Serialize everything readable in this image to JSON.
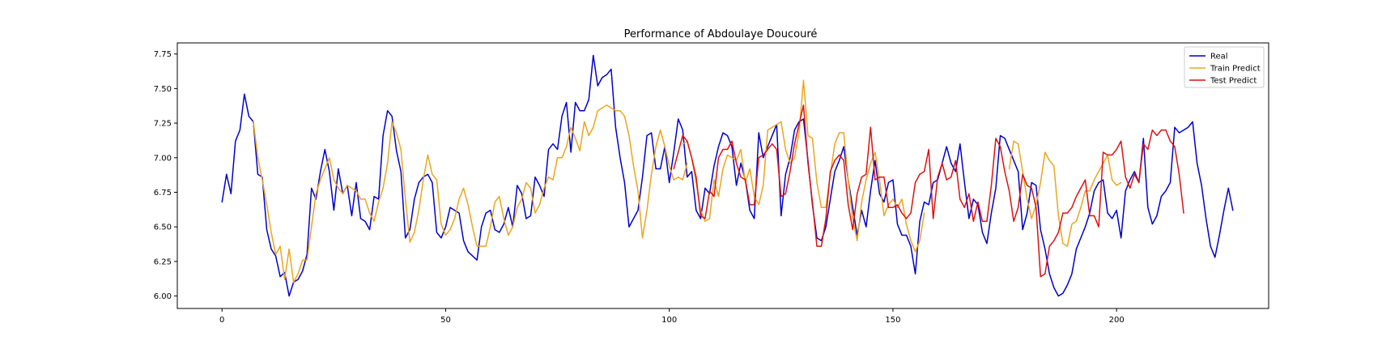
{
  "chart_data": {
    "type": "line",
    "title": "Performance of Abdoulaye Doucouré",
    "xlabel": "",
    "ylabel": "",
    "xlim": [
      -10,
      234
    ],
    "ylim": [
      5.91,
      7.83
    ],
    "xticks": [
      0,
      50,
      100,
      150,
      200
    ],
    "yticks": [
      6.0,
      6.25,
      6.5,
      6.75,
      7.0,
      7.25,
      7.5,
      7.75
    ],
    "ytick_labels": [
      "6.00",
      "6.25",
      "6.50",
      "6.75",
      "7.00",
      "7.25",
      "7.50",
      "7.75"
    ],
    "legend_position": "top-right",
    "grid": false,
    "series": [
      {
        "name": "Real",
        "color": "#0000cc",
        "x_start": 0,
        "values": [
          6.68,
          6.88,
          6.74,
          7.12,
          7.2,
          7.46,
          7.3,
          7.26,
          6.88,
          6.86,
          6.48,
          6.34,
          6.29,
          6.14,
          6.17,
          6.0,
          6.1,
          6.12,
          6.18,
          6.3,
          6.78,
          6.7,
          6.9,
          7.06,
          6.9,
          6.62,
          6.92,
          6.74,
          6.8,
          6.58,
          6.82,
          6.56,
          6.54,
          6.48,
          6.72,
          6.7,
          7.16,
          7.34,
          7.3,
          7.05,
          6.9,
          6.42,
          6.48,
          6.7,
          6.82,
          6.86,
          6.88,
          6.82,
          6.46,
          6.42,
          6.5,
          6.64,
          6.62,
          6.6,
          6.4,
          6.32,
          6.29,
          6.26,
          6.5,
          6.6,
          6.62,
          6.48,
          6.46,
          6.52,
          6.64,
          6.5,
          6.8,
          6.74,
          6.56,
          6.58,
          6.86,
          6.8,
          6.72,
          7.06,
          7.1,
          7.06,
          7.3,
          7.4,
          7.04,
          7.4,
          7.34,
          7.34,
          7.42,
          7.74,
          7.52,
          7.58,
          7.6,
          7.64,
          7.22,
          7.0,
          6.82,
          6.5,
          6.56,
          6.62,
          6.86,
          7.16,
          7.18,
          6.92,
          6.92,
          7.08,
          6.82,
          7.04,
          7.28,
          7.2,
          6.86,
          6.9,
          6.62,
          6.56,
          6.78,
          6.74,
          6.94,
          7.08,
          7.18,
          7.16,
          7.08,
          6.8,
          6.96,
          6.84,
          6.62,
          6.56,
          7.18,
          7.0,
          7.08,
          7.16,
          7.24,
          6.58,
          6.88,
          7.0,
          7.2,
          7.26,
          7.28,
          6.98,
          6.66,
          6.42,
          6.4,
          6.5,
          6.7,
          6.9,
          6.98,
          7.08,
          6.84,
          6.64,
          6.44,
          6.62,
          6.5,
          6.76,
          6.98,
          6.74,
          6.68,
          6.82,
          6.84,
          6.52,
          6.44,
          6.44,
          6.36,
          6.16,
          6.54,
          6.68,
          6.66,
          6.82,
          6.84,
          6.96,
          7.08,
          6.96,
          6.9,
          7.1,
          6.82,
          6.56,
          6.7,
          6.66,
          6.46,
          6.38,
          6.6,
          6.78,
          7.16,
          7.14,
          7.06,
          6.98,
          6.9,
          6.48,
          6.6,
          6.82,
          6.8,
          6.48,
          6.34,
          6.16,
          6.06,
          6.0,
          6.02,
          6.08,
          6.16,
          6.34,
          6.42,
          6.5,
          6.6,
          6.76,
          6.82,
          6.84,
          6.6,
          6.56,
          6.62,
          6.42,
          6.76,
          6.84,
          6.9,
          6.82,
          7.14,
          6.64,
          6.52,
          6.58,
          6.72,
          6.76,
          6.82,
          7.22,
          7.18,
          7.2,
          7.22,
          7.26,
          6.96,
          6.8,
          6.56,
          6.36,
          6.28,
          6.44,
          6.62,
          6.78,
          6.62
        ]
      },
      {
        "name": "Train Predict",
        "color": "#eba51e",
        "x_start": 7,
        "values": [
          7.26,
          7.0,
          6.84,
          6.66,
          6.46,
          6.3,
          6.36,
          6.12,
          6.34,
          6.1,
          6.16,
          6.26,
          6.26,
          6.5,
          6.74,
          6.84,
          6.92,
          7.0,
          6.84,
          6.78,
          6.74,
          6.8,
          6.78,
          6.76,
          6.7,
          6.7,
          6.6,
          6.54,
          6.68,
          6.78,
          6.96,
          7.26,
          7.18,
          7.06,
          6.7,
          6.39,
          6.46,
          6.62,
          6.84,
          7.02,
          6.88,
          6.84,
          6.52,
          6.44,
          6.48,
          6.56,
          6.7,
          6.78,
          6.66,
          6.5,
          6.36,
          6.36,
          6.36,
          6.5,
          6.68,
          6.72,
          6.56,
          6.44,
          6.5,
          6.64,
          6.7,
          6.82,
          6.78,
          6.6,
          6.66,
          6.78,
          6.86,
          6.84,
          7.0,
          7.0,
          7.08,
          7.22,
          7.14,
          7.05,
          7.26,
          7.16,
          7.22,
          7.34,
          7.36,
          7.38,
          7.36,
          7.34,
          7.34,
          7.3,
          7.16,
          6.94,
          6.76,
          6.42,
          6.62,
          6.88,
          7.08,
          7.2,
          7.08,
          6.94,
          6.84,
          6.86,
          6.84,
          6.96
        ]
      },
      {
        "name": "Train Predict",
        "color": "#eba51e",
        "x_start": 103,
        "values": [
          7.1,
          7.12,
          7.0,
          6.82,
          6.62,
          6.54,
          6.56,
          6.84,
          6.72,
          6.92,
          7.02,
          7.0,
          6.98,
          7.06,
          6.82,
          6.92,
          6.72,
          6.66,
          6.8,
          7.2,
          7.22,
          7.24,
          7.26,
          7.06,
          6.96,
          7.0,
          7.18,
          7.56,
          7.16,
          7.14,
          6.82,
          6.64,
          6.64,
          6.88,
          7.1,
          7.18,
          7.18,
          6.84,
          6.56,
          6.4,
          6.68,
          6.84,
          6.96,
          7.04,
          6.84,
          6.58,
          6.66,
          6.7,
          6.64,
          6.7,
          6.52,
          6.4,
          6.32,
          6.4,
          6.6
        ]
      },
      {
        "name": "Train Predict",
        "color": "#eba51e",
        "x_start": 176,
        "values": [
          6.92,
          7.12,
          7.1,
          6.9,
          6.7,
          6.56,
          6.66,
          6.82,
          7.04,
          6.98,
          6.94,
          6.58,
          6.38,
          6.36,
          6.52,
          6.54,
          6.64,
          6.76,
          6.76,
          6.84,
          6.9,
          6.96,
          7.02,
          6.84,
          6.8,
          6.82
        ]
      },
      {
        "name": "Test Predict",
        "color": "#dd1111",
        "x_start": 101,
        "values": [
          6.92,
          7.04,
          7.16,
          7.12,
          7.0,
          6.86,
          6.58,
          6.56,
          6.76,
          6.72,
          7.0,
          7.06,
          7.06,
          7.12,
          6.96,
          6.86,
          6.84,
          6.66,
          6.66,
          7.0,
          7.02,
          7.06,
          7.1,
          7.06,
          6.72,
          6.74,
          6.9,
          7.1,
          7.24,
          7.38,
          6.96,
          6.68,
          6.36,
          6.36,
          6.56,
          6.9,
          6.98,
          7.02,
          6.98,
          6.66,
          6.48,
          6.74,
          6.86,
          6.88,
          7.22,
          6.84,
          6.86,
          6.86,
          6.64,
          6.64,
          6.66,
          6.6,
          6.56,
          6.6,
          6.82,
          6.88,
          6.9,
          7.06,
          6.56,
          6.86,
          6.96,
          6.84,
          6.86,
          6.98,
          6.7,
          6.64,
          6.74,
          6.54,
          6.68,
          6.54,
          6.54,
          6.8,
          7.14,
          7.08,
          6.9,
          6.76,
          6.54,
          6.64,
          6.88,
          6.8,
          6.78,
          6.64,
          6.14,
          6.16,
          6.36,
          6.4,
          6.46,
          6.6,
          6.6,
          6.64,
          6.72,
          6.78,
          6.84,
          6.58,
          6.58,
          6.5,
          7.04,
          7.02,
          7.02,
          7.06,
          7.12,
          6.86,
          6.78,
          6.88,
          6.82,
          7.1,
          7.06,
          7.2,
          7.16,
          7.2,
          7.2,
          7.12,
          7.08,
          6.88,
          6.6
        ]
      }
    ],
    "legend": [
      {
        "label": "Real",
        "color": "#0000cc"
      },
      {
        "label": "Train Predict",
        "color": "#eba51e"
      },
      {
        "label": "Test Predict",
        "color": "#dd1111"
      }
    ]
  }
}
